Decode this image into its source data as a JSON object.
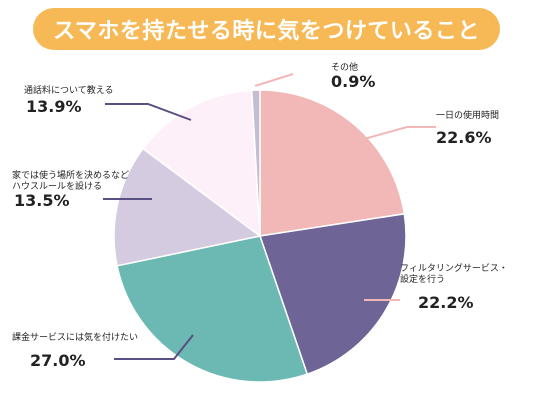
{
  "title": "スマホを持たせる時に気をつけていること",
  "chart_data": {
    "type": "pie",
    "title": "スマホを持たせる時に気をつけていること",
    "start_angle_deg": 0,
    "direction": "clockwise",
    "slices": [
      {
        "label": "一日の使用時間",
        "value": 22.6,
        "value_label": "22.6%",
        "color": "#f2b8b7"
      },
      {
        "label": "フィルタリングサービス・設定を行う",
        "label_lines": [
          "フィルタリングサービス・",
          "設定を行う"
        ],
        "value": 22.2,
        "value_label": "22.2%",
        "color": "#6e6496"
      },
      {
        "label": "課金サービスには気を付けたい",
        "value": 27.0,
        "value_label": "27.0%",
        "color": "#6cb8b2"
      },
      {
        "label": "家では使う場所を決めるなどハウスルールを設ける",
        "label_lines": [
          "家では使う場所を決めるなど",
          "ハウスルールを設ける"
        ],
        "value": 13.5,
        "value_label": "13.5%",
        "color": "#d4cbe0"
      },
      {
        "label": "通話料について教える",
        "value": 13.9,
        "value_label": "13.9%",
        "color": "#fdf0f8"
      },
      {
        "label": "その他",
        "value": 0.9,
        "value_label": "0.9%",
        "color": "#c4bcd0"
      }
    ]
  },
  "colors": {
    "title_bg": "#f6b956",
    "leader_line_light": "#f2b8b7",
    "leader_line_dark": "#5a4f82"
  }
}
